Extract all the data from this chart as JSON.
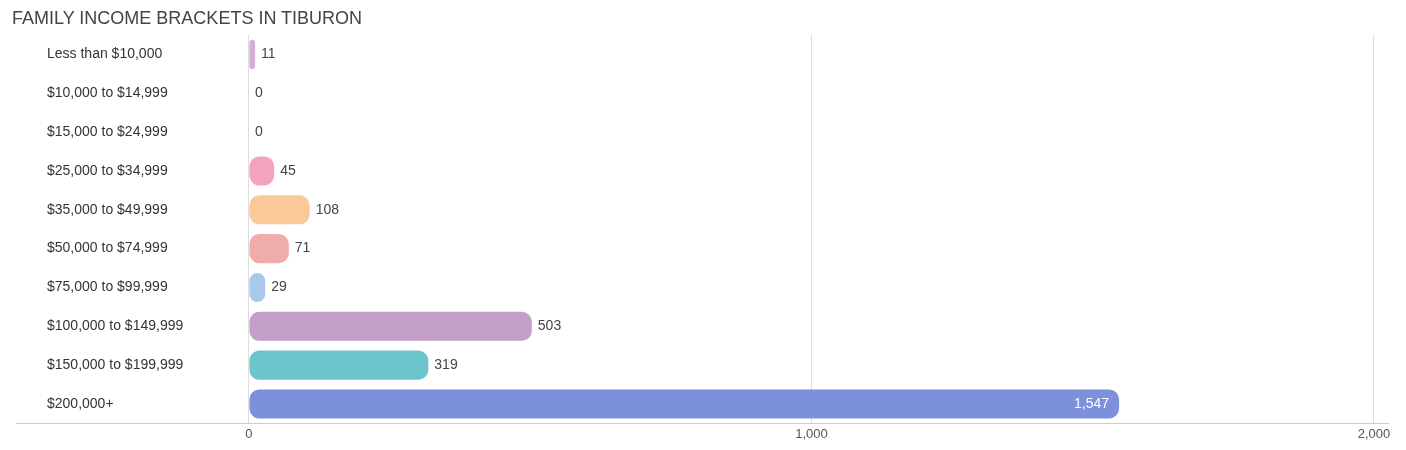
{
  "chart_data": {
    "type": "bar",
    "orientation": "horizontal",
    "title": "FAMILY INCOME BRACKETS IN TIBURON",
    "categories": [
      "Less than $10,000",
      "$10,000 to $14,999",
      "$15,000 to $24,999",
      "$25,000 to $34,999",
      "$35,000 to $49,999",
      "$50,000 to $74,999",
      "$75,000 to $99,999",
      "$100,000 to $149,999",
      "$150,000 to $199,999",
      "$200,000+"
    ],
    "values": [
      11,
      0,
      0,
      45,
      108,
      71,
      29,
      503,
      319,
      1547
    ],
    "colors": [
      "#d4b0d6",
      "#7fd0d6",
      "#b0b8ea",
      "#f4a3be",
      "#f9c99a",
      "#f0aca8",
      "#a8c8ec",
      "#c49fca",
      "#6cc5ca",
      "#7d90dc"
    ],
    "xlim": [
      -414,
      2025
    ],
    "xticks": [
      {
        "value": 0,
        "label": "0"
      },
      {
        "value": 1000,
        "label": "1,000"
      },
      {
        "value": 2000,
        "label": "2,000"
      }
    ],
    "value_labels": [
      "11",
      "0",
      "0",
      "45",
      "108",
      "71",
      "29",
      "503",
      "319",
      "1,547"
    ],
    "grid": "x",
    "legend": false
  }
}
